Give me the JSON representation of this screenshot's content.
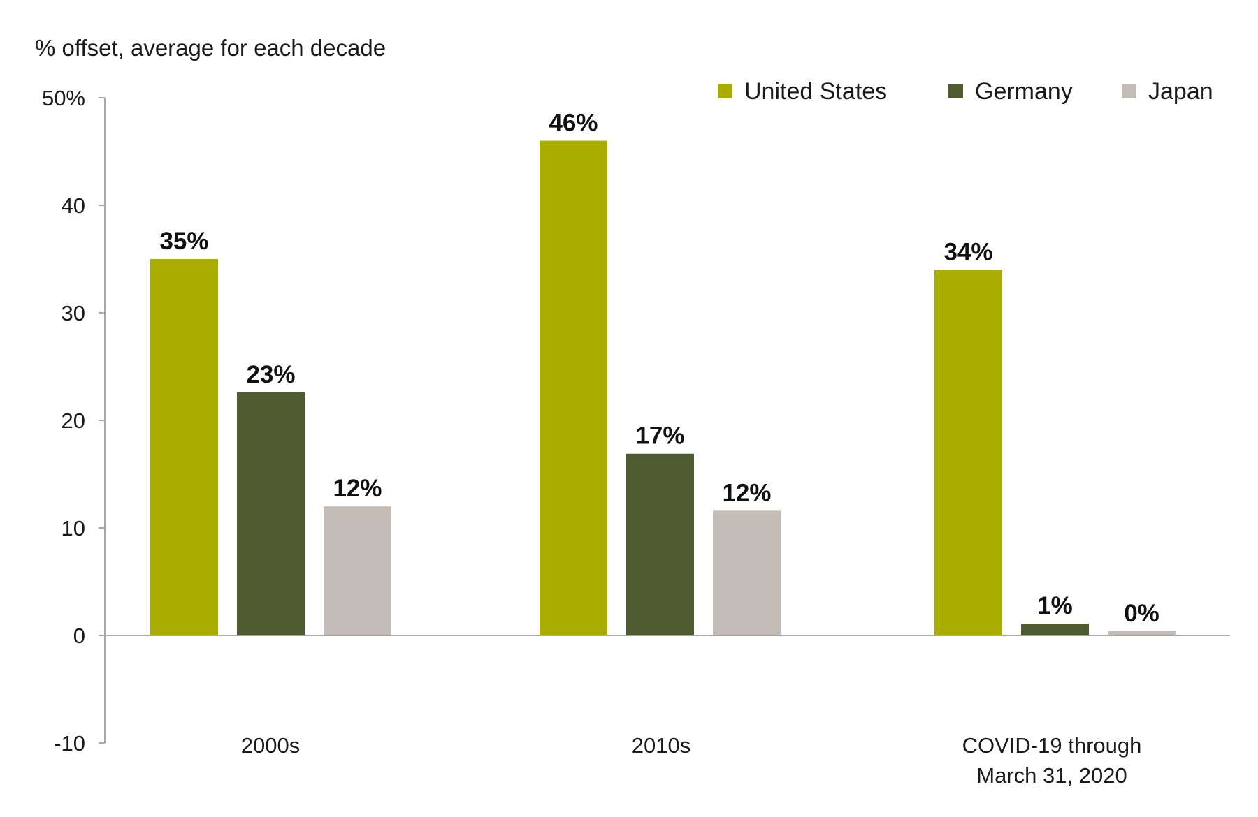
{
  "chart_data": {
    "type": "bar",
    "subtitle": "% offset, average for each decade",
    "categories": [
      [
        "2000s"
      ],
      [
        "2010s"
      ],
      [
        "COVID-19 through",
        "March 31, 2020"
      ]
    ],
    "series": [
      {
        "name": "United States",
        "color": "#a8ad00",
        "values": [
          35,
          46,
          34
        ],
        "labels": [
          "35%",
          "46%",
          "34%"
        ]
      },
      {
        "name": "Germany",
        "color": "#4e5b31",
        "values": [
          22.6,
          16.9,
          1.1
        ],
        "labels": [
          "23%",
          "17%",
          "1%"
        ]
      },
      {
        "name": "Japan",
        "color": "#c4bcb7",
        "values": [
          12,
          11.6,
          0.4
        ],
        "labels": [
          "12%",
          "12%",
          "0%"
        ]
      }
    ],
    "yticks": [
      {
        "value": 50,
        "label": "50%"
      },
      {
        "value": 40,
        "label": "40"
      },
      {
        "value": 30,
        "label": "30"
      },
      {
        "value": 20,
        "label": "20"
      },
      {
        "value": 10,
        "label": "10"
      },
      {
        "value": 0,
        "label": "0"
      },
      {
        "value": -10,
        "label": "-10"
      }
    ],
    "ylim": [
      -10,
      50
    ],
    "grid": false,
    "legend_position": "top-right"
  }
}
